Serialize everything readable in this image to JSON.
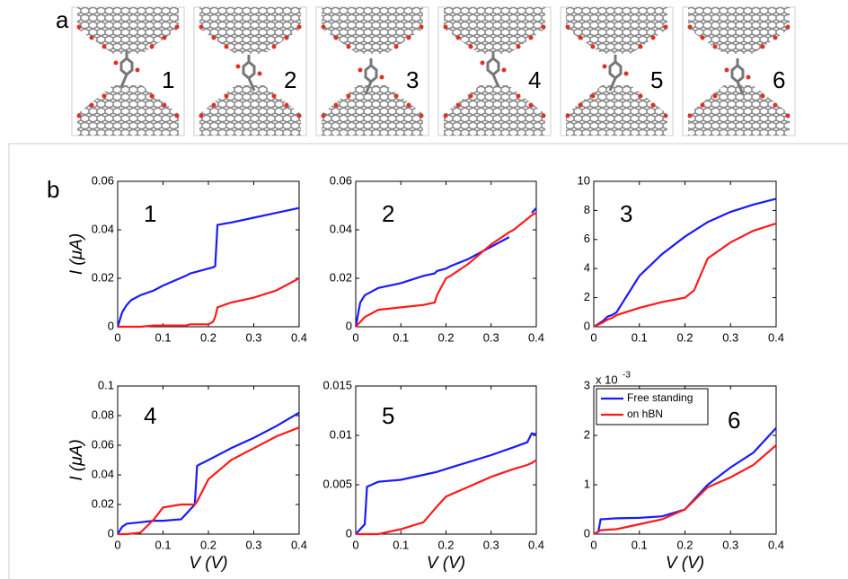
{
  "panel_a": {
    "label": "a",
    "frames": [
      "1",
      "2",
      "3",
      "4",
      "5",
      "6"
    ]
  },
  "panel_b": {
    "label": "b"
  },
  "chart_data": [
    {
      "type": "line",
      "label": "1",
      "ylabel": "I (μA)",
      "x": [
        0,
        0.01,
        0.02,
        0.03,
        0.05,
        0.08,
        0.1,
        0.15,
        0.16,
        0.2,
        0.21,
        0.215,
        0.22,
        0.25,
        0.3,
        0.35,
        0.4
      ],
      "series": [
        {
          "color": "#1a1aff",
          "values": [
            0,
            0.006,
            0.009,
            0.011,
            0.013,
            0.015,
            0.017,
            0.021,
            0.022,
            0.024,
            0.0245,
            0.025,
            0.042,
            0.043,
            0.045,
            0.047,
            0.049
          ]
        },
        {
          "color": "#ff1a1a",
          "values": [
            0,
            0,
            0,
            0,
            0,
            0.0005,
            0.0005,
            0.0005,
            0.001,
            0.001,
            0.002,
            0.004,
            0.008,
            0.01,
            0.012,
            0.015,
            0.02
          ]
        }
      ],
      "xlim": [
        0,
        0.4
      ],
      "xticks": [
        0,
        0.1,
        0.2,
        0.3,
        0.4
      ],
      "ylim": [
        0,
        0.06
      ],
      "yticks": [
        0,
        0.02,
        0.04,
        0.06
      ]
    },
    {
      "type": "line",
      "label": "2",
      "x": [
        0,
        0.01,
        0.02,
        0.05,
        0.1,
        0.15,
        0.175,
        0.18,
        0.2,
        0.21,
        0.25,
        0.3,
        0.34,
        0.35,
        0.39,
        0.4
      ],
      "series": [
        {
          "color": "#1a1aff",
          "values": [
            0,
            0.01,
            0.013,
            0.016,
            0.018,
            0.021,
            0.022,
            0.023,
            0.024,
            0.025,
            0.028,
            0.033,
            0.037,
            null,
            0.047,
            0.049
          ]
        },
        {
          "color": "#ff1a1a",
          "values": [
            0,
            0.002,
            0.004,
            0.007,
            0.008,
            0.009,
            0.01,
            0.013,
            0.02,
            0.021,
            0.026,
            0.034,
            0.039,
            0.04,
            0.046,
            0.047
          ]
        }
      ],
      "xlim": [
        0,
        0.4
      ],
      "xticks": [
        0,
        0.1,
        0.2,
        0.3,
        0.4
      ],
      "ylim": [
        0,
        0.06
      ],
      "yticks": [
        0,
        0.02,
        0.04,
        0.06
      ]
    },
    {
      "type": "line",
      "label": "3",
      "x": [
        0,
        0.02,
        0.03,
        0.04,
        0.05,
        0.1,
        0.15,
        0.2,
        0.22,
        0.25,
        0.3,
        0.35,
        0.4
      ],
      "series": [
        {
          "color": "#1a1aff",
          "values": [
            0,
            0.4,
            0.7,
            0.8,
            1,
            3.5,
            5,
            6.2,
            6.6,
            7.2,
            7.9,
            8.4,
            8.8
          ]
        },
        {
          "color": "#ff1a1a",
          "values": [
            0,
            0.3,
            0.5,
            0.6,
            0.8,
            1.3,
            1.7,
            2,
            2.5,
            4.7,
            5.8,
            6.6,
            7.1
          ]
        }
      ],
      "xlim": [
        0,
        0.4
      ],
      "xticks": [
        0,
        0.1,
        0.2,
        0.3,
        0.4
      ],
      "ylim": [
        0,
        10
      ],
      "yticks": [
        0,
        2,
        4,
        6,
        8,
        10
      ]
    },
    {
      "type": "line",
      "label": "4",
      "ylabel": "I (μA)",
      "xlabel": "V (V)",
      "x": [
        0,
        0.01,
        0.02,
        0.05,
        0.08,
        0.1,
        0.14,
        0.17,
        0.175,
        0.18,
        0.2,
        0.25,
        0.3,
        0.35,
        0.4
      ],
      "series": [
        {
          "color": "#1a1aff",
          "values": [
            0,
            0.005,
            0.007,
            0.008,
            0.009,
            0.009,
            0.01,
            0.02,
            0.046,
            0.047,
            0.05,
            0.058,
            0.065,
            0.073,
            0.082
          ]
        },
        {
          "color": "#ff1a1a",
          "values": [
            0,
            0,
            0,
            0.001,
            0.01,
            0.018,
            0.02,
            0.02,
            0.022,
            0.025,
            0.037,
            0.05,
            0.058,
            0.066,
            0.072
          ]
        }
      ],
      "xlim": [
        0,
        0.4
      ],
      "xticks": [
        0,
        0.1,
        0.2,
        0.3,
        0.4
      ],
      "ylim": [
        0,
        0.1
      ],
      "yticks": [
        0,
        0.02,
        0.04,
        0.06,
        0.08,
        0.1
      ]
    },
    {
      "type": "line",
      "label": "5",
      "xlabel": "V (V)",
      "x": [
        0,
        0.02,
        0.025,
        0.05,
        0.1,
        0.15,
        0.18,
        0.2,
        0.25,
        0.3,
        0.35,
        0.38,
        0.39,
        0.4
      ],
      "series": [
        {
          "color": "#1a1aff",
          "values": [
            0,
            0.001,
            0.0048,
            0.0053,
            0.0055,
            0.006,
            0.0063,
            0.0066,
            0.0073,
            0.008,
            0.0088,
            0.0093,
            0.0102,
            0.0101
          ]
        },
        {
          "color": "#ff1a1a",
          "values": [
            0,
            0,
            0,
            0,
            0.0005,
            0.0012,
            0.0028,
            0.0038,
            0.0048,
            0.0058,
            0.0066,
            0.007,
            0.0072,
            0.0075
          ]
        }
      ],
      "xlim": [
        0,
        0.4
      ],
      "xticks": [
        0,
        0.1,
        0.2,
        0.3,
        0.4
      ],
      "ylim": [
        0,
        0.015
      ],
      "yticks": [
        0,
        0.005,
        0.01,
        0.015
      ]
    },
    {
      "type": "line",
      "label": "6",
      "xlabel": "V (V)",
      "y_scale_label": {
        "base": "x 10",
        "exponent": "-3"
      },
      "legend": "upper left",
      "x": [
        0,
        0.01,
        0.015,
        0.05,
        0.1,
        0.15,
        0.2,
        0.25,
        0.3,
        0.35,
        0.4
      ],
      "series": [
        {
          "name": "Free standing",
          "color": "#1a1aff",
          "values": [
            0,
            0.05,
            0.3,
            0.32,
            0.33,
            0.36,
            0.5,
            1,
            1.35,
            1.65,
            2.15
          ]
        },
        {
          "name": "on hBN",
          "color": "#ff1a1a",
          "values": [
            0,
            0.05,
            0.08,
            0.1,
            0.2,
            0.3,
            0.5,
            0.95,
            1.15,
            1.4,
            1.8
          ]
        }
      ],
      "xlim": [
        0,
        0.4
      ],
      "xticks": [
        0,
        0.1,
        0.2,
        0.3,
        0.4
      ],
      "ylim": [
        0,
        3
      ],
      "yticks": [
        0,
        1,
        2,
        3
      ]
    }
  ]
}
